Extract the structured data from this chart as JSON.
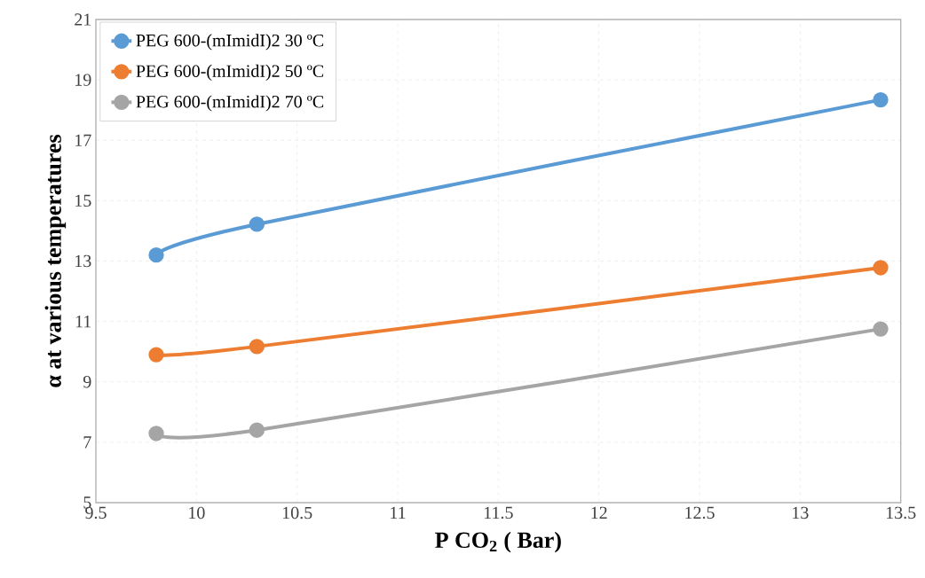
{
  "chart_data": {
    "type": "line",
    "xlabel": "P CO$_{2}$ ( Bar)",
    "ylabel": "α at various temperatures",
    "x": [
      9.8,
      10.3,
      13.4
    ],
    "series": [
      {
        "name": "PEG 600-(mImidI)2 30 ºC",
        "color": "#5b9bd5",
        "values": [
          13.2,
          14.22,
          18.34
        ]
      },
      {
        "name": "PEG 600-(mImidI)2 50 ºC",
        "color": "#ed7d31",
        "values": [
          9.9,
          10.17,
          12.78
        ]
      },
      {
        "name": "PEG 600-(mImidI)2 70 ºC",
        "color": "#a5a5a5",
        "values": [
          7.29,
          7.4,
          10.75
        ]
      }
    ],
    "xlim": [
      9.5,
      13.5
    ],
    "xticks": [
      9.5,
      10,
      10.5,
      11,
      11.5,
      12,
      12.5,
      13,
      13.5
    ],
    "ylim": [
      5,
      21
    ],
    "yticks": [
      5,
      7,
      9,
      11,
      13,
      15,
      17,
      19,
      21
    ],
    "grid": true,
    "legend": "top left",
    "marker": "circle",
    "line_style": "solid"
  }
}
